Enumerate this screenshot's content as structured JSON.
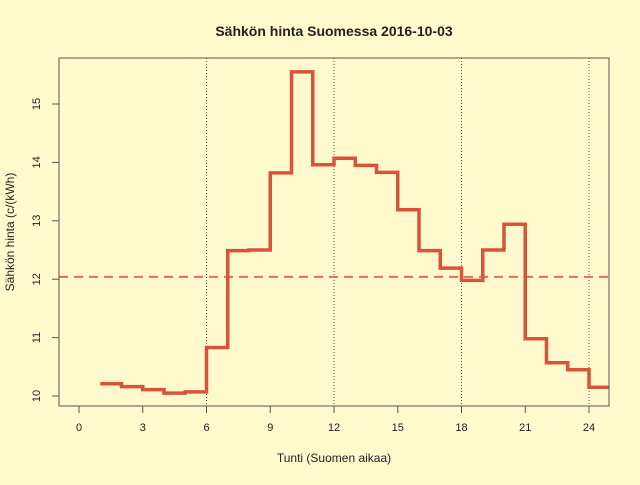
{
  "chart_data": {
    "type": "line",
    "subtype": "step",
    "title": "Sähkön hinta Suomessa 2016-10-03",
    "xlabel": "Tunti (Suomen aikaa)",
    "ylabel": "Sähkön hinta (c/(kWh)",
    "xlim": [
      -1.5,
      25
    ],
    "ylim": [
      9.82,
      15.78
    ],
    "xticks": [
      0,
      3,
      6,
      9,
      12,
      15,
      18,
      21,
      24
    ],
    "yticks": [
      10,
      11,
      12,
      13,
      14,
      15
    ],
    "vertical_gridlines": [
      6,
      12,
      18,
      24
    ],
    "mean_line": 12.04,
    "x": [
      1,
      2,
      3,
      4,
      5,
      6,
      7,
      8,
      9,
      10,
      11,
      12,
      13,
      14,
      15,
      16,
      17,
      18,
      19,
      20,
      21,
      22,
      23,
      24
    ],
    "values": [
      10.21,
      10.16,
      10.11,
      10.05,
      10.07,
      10.83,
      12.49,
      12.5,
      13.82,
      15.55,
      13.96,
      14.07,
      13.95,
      13.83,
      13.19,
      12.49,
      12.19,
      11.98,
      12.5,
      12.94,
      10.98,
      10.57,
      10.45,
      10.15
    ],
    "series": [
      {
        "name": "hinta",
        "color": "#d9533b"
      }
    ],
    "legend": null,
    "grid": false
  },
  "colors": {
    "background": "#fffacd",
    "line": "#d9533b",
    "mean": "#e07055",
    "axis": "#555555"
  }
}
